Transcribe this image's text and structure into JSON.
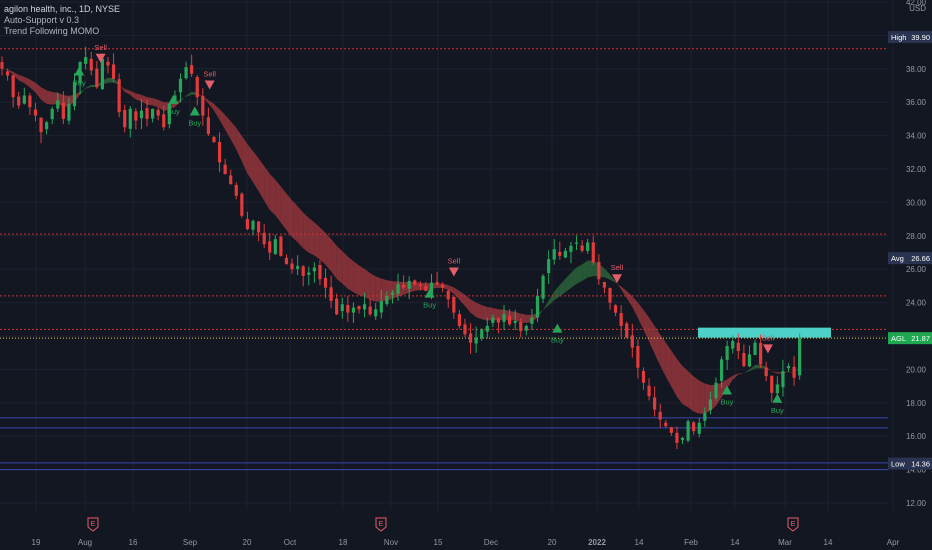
{
  "legend": {
    "symbol": "agilon health, inc., 1D, NYSE",
    "indicator1": "Auto-Support v 0.3",
    "indicator2": "Trend Following MOMO"
  },
  "colors": {
    "background": "#131722",
    "up": "#26a65b",
    "down": "#e33b3b",
    "band_bear": "#a83a3f",
    "band_bull": "#2f6e3d",
    "resistance_line": "#d32f2f",
    "support_line": "#3949ab",
    "price_line": "#f2c94c",
    "zone": "#4dd0c8"
  },
  "chart_data": {
    "type": "candlestick",
    "currency": "USD",
    "ylim": [
      12,
      42
    ],
    "y_ticks": [
      "12.00",
      "14.00",
      "16.00",
      "18.00",
      "20.00",
      "22.00",
      "24.00",
      "26.00",
      "28.00",
      "30.00",
      "32.00",
      "34.00",
      "36.00",
      "38.00",
      "40.00",
      "42.00"
    ],
    "x_ticks": [
      "19",
      "Aug",
      "16",
      "Sep",
      "20",
      "Oct",
      "18",
      "Nov",
      "15",
      "Dec",
      "20",
      "2022",
      "14",
      "Feb",
      "14",
      "Mar",
      "14",
      "Apr"
    ],
    "price_tags": [
      {
        "label": "High",
        "value": "39.90",
        "y": 39.9
      },
      {
        "label": "Avg",
        "value": "26.66",
        "y": 26.66
      },
      {
        "label": "AGL",
        "value": "21.87",
        "y": 21.87
      },
      {
        "label": "Low",
        "value": "14.36",
        "y": 14.36
      }
    ],
    "horizontal_levels": {
      "resistance": [
        39.2,
        28.1,
        24.4,
        22.4
      ],
      "support": [
        17.1,
        16.5,
        14.4,
        14.0
      ]
    },
    "zone": {
      "y_low": 21.9,
      "y_high": 22.5
    },
    "signals": [
      {
        "label": "Buy",
        "type": "buy",
        "t": 0.085,
        "y": 37.9
      },
      {
        "label": "Sell",
        "type": "sell",
        "t": 0.108,
        "y": 38.6
      },
      {
        "label": "Buy",
        "type": "buy",
        "t": 0.186,
        "y": 36.2
      },
      {
        "label": "Buy",
        "type": "buy",
        "t": 0.209,
        "y": 35.5
      },
      {
        "label": "Sell",
        "type": "sell",
        "t": 0.225,
        "y": 37.0
      },
      {
        "label": "Sell",
        "type": "sell",
        "t": 0.487,
        "y": 25.8
      },
      {
        "label": "Buy",
        "type": "buy",
        "t": 0.461,
        "y": 24.6
      },
      {
        "label": "Buy",
        "type": "buy",
        "t": 0.598,
        "y": 22.5
      },
      {
        "label": "Sell",
        "type": "sell",
        "t": 0.662,
        "y": 25.4
      },
      {
        "label": "Buy",
        "type": "buy",
        "t": 0.78,
        "y": 18.8
      },
      {
        "label": "Sell",
        "type": "sell",
        "t": 0.824,
        "y": 21.2
      },
      {
        "label": "Buy",
        "type": "buy",
        "t": 0.834,
        "y": 18.3
      }
    ],
    "earnings_markers": [
      "E",
      "E",
      "E"
    ],
    "series_close": [
      38.0,
      37.6,
      36.3,
      35.8,
      36.4,
      35.7,
      35.2,
      34.2,
      34.8,
      35.6,
      36.1,
      35.0,
      35.9,
      37.2,
      38.4,
      38.7,
      37.9,
      36.9,
      38.6,
      38.2,
      37.4,
      35.4,
      34.5,
      35.6,
      34.9,
      35.5,
      35.0,
      35.6,
      35.2,
      34.5,
      35.9,
      36.4,
      37.4,
      38.1,
      37.7,
      36.3,
      35.2,
      34.1,
      33.6,
      32.4,
      31.7,
      31.1,
      30.4,
      29.2,
      28.4,
      28.9,
      28.2,
      27.5,
      27.0,
      27.8,
      26.8,
      26.3,
      26.0,
      26.2,
      25.6,
      25.8,
      26.1,
      25.4,
      24.9,
      24.1,
      23.3,
      23.9,
      23.4,
      23.7,
      23.6,
      23.9,
      23.3,
      23.6,
      24.1,
      24.4,
      24.6,
      25.1,
      24.9,
      25.3,
      25.1,
      25.0,
      24.7,
      25.2,
      25.1,
      24.9,
      24.2,
      23.4,
      22.6,
      22.1,
      21.6,
      21.9,
      22.4,
      22.6,
      23.1,
      22.8,
      23.3,
      22.7,
      22.9,
      22.3,
      22.6,
      23.1,
      24.4,
      25.6,
      26.6,
      27.2,
      26.8,
      27.1,
      27.4,
      27.6,
      27.1,
      27.6,
      26.4,
      25.4,
      24.9,
      24.0,
      23.4,
      22.6,
      21.9,
      21.3,
      20.1,
      19.2,
      18.4,
      17.6,
      17.0,
      16.6,
      16.2,
      15.6,
      15.9,
      16.9,
      16.3,
      16.8,
      17.4,
      18.2,
      19.2,
      20.6,
      21.4,
      21.7,
      21.1,
      20.2,
      20.9,
      21.6,
      20.3,
      19.6,
      18.6,
      19.1,
      19.9,
      20.2,
      19.5,
      21.87
    ],
    "series_x_start_fraction": 0.0,
    "series_x_end_fraction": 0.858
  }
}
